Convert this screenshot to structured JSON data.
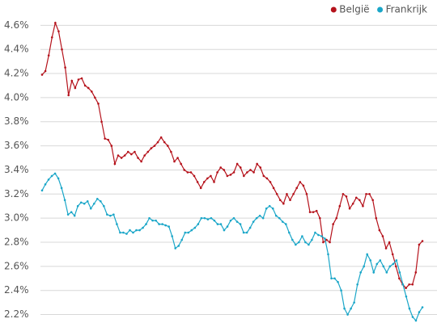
{
  "chart_data": {
    "type": "line",
    "ylim": [
      2.13,
      4.81
    ],
    "yticks": [
      {
        "value": 2.2,
        "label": "2.2%"
      },
      {
        "value": 2.4,
        "label": "2.4%"
      },
      {
        "value": 2.6,
        "label": "2.6%"
      },
      {
        "value": 2.8,
        "label": "2.8%"
      },
      {
        "value": 3.0,
        "label": "3.0%"
      },
      {
        "value": 3.2,
        "label": "3.2%"
      },
      {
        "value": 3.4,
        "label": "3.4%"
      },
      {
        "value": 3.6,
        "label": "3.6%"
      },
      {
        "value": 3.8,
        "label": "3.8%"
      },
      {
        "value": 4.0,
        "label": "4.0%"
      },
      {
        "value": 4.2,
        "label": "4.2%"
      },
      {
        "value": 4.4,
        "label": "4.4%"
      },
      {
        "value": 4.6,
        "label": "4.6%"
      }
    ],
    "grid": true,
    "legend": "top-right",
    "series": [
      {
        "name": "België",
        "color": "#b5121b",
        "values": [
          4.19,
          4.22,
          4.35,
          4.5,
          4.62,
          4.55,
          4.4,
          4.25,
          4.02,
          4.14,
          4.08,
          4.15,
          4.16,
          4.1,
          4.08,
          4.05,
          4.0,
          3.95,
          3.8,
          3.66,
          3.65,
          3.6,
          3.45,
          3.52,
          3.5,
          3.52,
          3.55,
          3.53,
          3.55,
          3.5,
          3.47,
          3.52,
          3.55,
          3.58,
          3.6,
          3.63,
          3.67,
          3.63,
          3.6,
          3.55,
          3.47,
          3.5,
          3.45,
          3.4,
          3.38,
          3.38,
          3.35,
          3.3,
          3.25,
          3.3,
          3.33,
          3.35,
          3.3,
          3.38,
          3.42,
          3.4,
          3.35,
          3.36,
          3.38,
          3.45,
          3.42,
          3.35,
          3.38,
          3.4,
          3.38,
          3.45,
          3.42,
          3.35,
          3.33,
          3.3,
          3.25,
          3.2,
          3.15,
          3.12,
          3.2,
          3.15,
          3.2,
          3.25,
          3.3,
          3.27,
          3.2,
          3.05,
          3.05,
          3.06,
          3.0,
          2.8,
          2.82,
          2.8,
          2.95,
          3.0,
          3.1,
          3.2,
          3.18,
          3.08,
          3.12,
          3.17,
          3.15,
          3.1,
          3.2,
          3.2,
          3.15,
          3.0,
          2.9,
          2.85,
          2.75,
          2.8,
          2.7,
          2.6,
          2.5,
          2.45,
          2.42,
          2.45,
          2.45,
          2.55,
          2.78,
          2.81
        ]
      },
      {
        "name": "Frankrijk",
        "color": "#1aa6c8",
        "values": [
          3.23,
          3.28,
          3.32,
          3.35,
          3.37,
          3.33,
          3.25,
          3.15,
          3.03,
          3.05,
          3.02,
          3.1,
          3.13,
          3.12,
          3.14,
          3.08,
          3.12,
          3.16,
          3.14,
          3.1,
          3.03,
          3.02,
          3.03,
          2.95,
          2.88,
          2.88,
          2.87,
          2.9,
          2.88,
          2.9,
          2.9,
          2.92,
          2.95,
          3.0,
          2.98,
          2.98,
          2.95,
          2.95,
          2.94,
          2.93,
          2.85,
          2.75,
          2.77,
          2.82,
          2.88,
          2.88,
          2.9,
          2.92,
          2.95,
          3.0,
          3.0,
          2.99,
          3.0,
          2.98,
          2.95,
          2.95,
          2.9,
          2.93,
          2.98,
          3.0,
          2.97,
          2.95,
          2.88,
          2.88,
          2.92,
          2.97,
          3.0,
          3.02,
          3.0,
          3.08,
          3.1,
          3.08,
          3.02,
          3.0,
          2.97,
          2.95,
          2.88,
          2.82,
          2.78,
          2.8,
          2.85,
          2.8,
          2.78,
          2.82,
          2.88,
          2.86,
          2.85,
          2.83,
          2.7,
          2.5,
          2.5,
          2.47,
          2.4,
          2.25,
          2.2,
          2.25,
          2.3,
          2.45,
          2.55,
          2.6,
          2.7,
          2.65,
          2.55,
          2.62,
          2.65,
          2.6,
          2.55,
          2.6,
          2.62,
          2.65,
          2.55,
          2.45,
          2.35,
          2.25,
          2.18,
          2.15,
          2.22,
          2.26
        ]
      }
    ]
  }
}
